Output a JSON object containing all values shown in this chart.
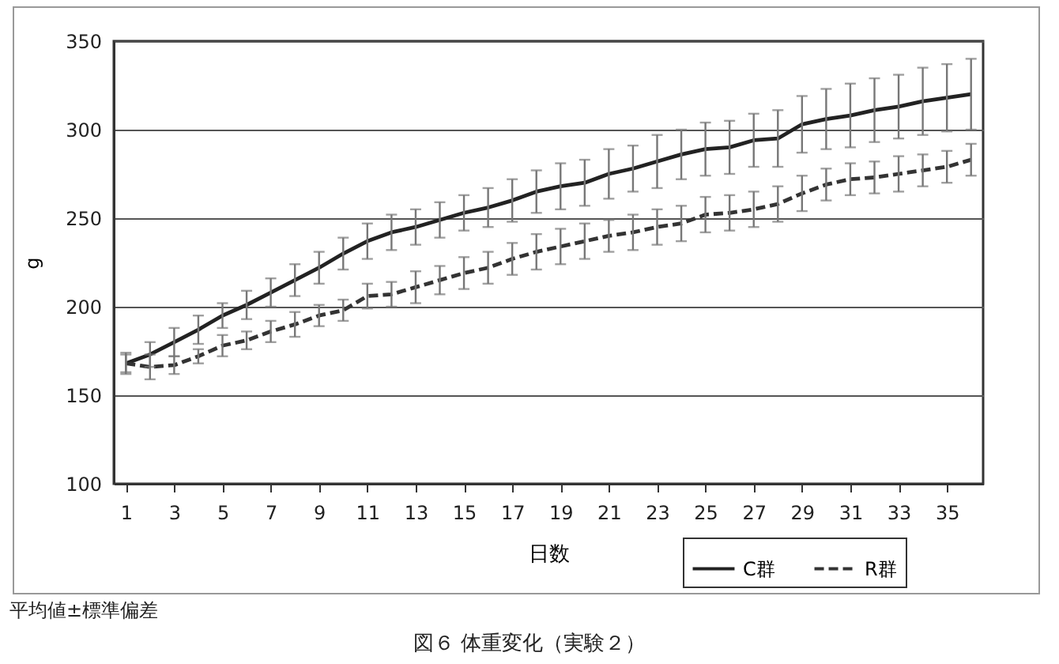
{
  "chart_data": {
    "type": "line",
    "title": "図６ 体重変化（実験２）",
    "annotations": [
      "平均値±標準偏差"
    ],
    "xlabel": "日数",
    "ylabel": "g",
    "x": [
      1,
      2,
      3,
      4,
      5,
      6,
      7,
      8,
      9,
      10,
      11,
      12,
      13,
      14,
      15,
      16,
      17,
      18,
      19,
      20,
      21,
      22,
      23,
      24,
      25,
      26,
      27,
      28,
      29,
      30,
      31,
      32,
      33,
      34,
      35,
      36
    ],
    "xlim": [
      0.5,
      36.5
    ],
    "xticks": [
      1,
      3,
      5,
      7,
      9,
      11,
      13,
      15,
      17,
      19,
      21,
      23,
      25,
      27,
      29,
      31,
      33,
      35
    ],
    "ylim": [
      100,
      350
    ],
    "yticks": [
      100,
      150,
      200,
      250,
      300,
      350
    ],
    "grid": "y",
    "legend": "bottom right",
    "marker": "none",
    "series": [
      {
        "name": "C群",
        "color": "#222222",
        "line_style": "solid",
        "values": [
          168,
          173,
          180,
          187,
          195,
          201,
          208,
          215,
          222,
          230,
          237,
          242,
          245,
          249,
          253,
          256,
          260,
          265,
          268,
          270,
          275,
          278,
          282,
          286,
          289,
          290,
          294,
          295,
          303,
          306,
          308,
          311,
          313,
          316,
          318,
          320
        ],
        "errors": [
          6,
          7,
          8,
          8,
          7,
          8,
          8,
          9,
          9,
          9,
          10,
          10,
          10,
          10,
          10,
          11,
          12,
          12,
          13,
          13,
          14,
          13,
          15,
          14,
          15,
          15,
          15,
          16,
          16,
          17,
          18,
          18,
          18,
          19,
          19,
          20
        ]
      },
      {
        "name": "R群",
        "color": "#333333",
        "line_style": "dashed",
        "values": [
          168,
          166,
          167,
          172,
          178,
          181,
          186,
          190,
          195,
          198,
          206,
          207,
          211,
          215,
          219,
          222,
          227,
          231,
          234,
          237,
          240,
          242,
          245,
          247,
          252,
          253,
          255,
          258,
          264,
          269,
          272,
          273,
          275,
          277,
          279,
          283
        ],
        "errors": [
          5,
          7,
          5,
          4,
          6,
          5,
          6,
          7,
          6,
          6,
          7,
          7,
          9,
          8,
          9,
          9,
          9,
          10,
          10,
          10,
          9,
          10,
          10,
          10,
          10,
          10,
          10,
          10,
          10,
          9,
          9,
          9,
          10,
          9,
          9,
          9
        ]
      }
    ]
  }
}
